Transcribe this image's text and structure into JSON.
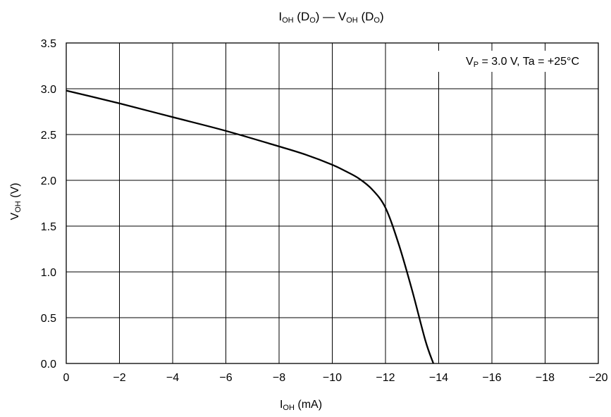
{
  "chart_data": {
    "type": "line",
    "title": {
      "main": "I",
      "sub": "OH",
      "pin_open": " (D",
      "pin_sub": "O",
      "middle": ") — V",
      "sub2": "OH",
      "pin2_open": " (D",
      "pin2_sub": "O",
      "close": ")"
    },
    "xlabel": {
      "main": "I",
      "sub": "OH",
      "unit": " (mA)"
    },
    "ylabel": {
      "main": "V",
      "sub": "OH",
      "unit": " (V)"
    },
    "annotation": {
      "v": "V",
      "sub": "P",
      "rest": " = 3.0 V, Ta = +25°C"
    },
    "xlim": [
      0,
      -20
    ],
    "ylim": [
      0,
      3.5
    ],
    "xticks": [
      0,
      -2,
      -4,
      -6,
      -8,
      -10,
      -12,
      -14,
      -16,
      -18,
      -20
    ],
    "xtick_labels": [
      "0",
      "−2",
      "−4",
      "−6",
      "−8",
      "−10",
      "−12",
      "−14",
      "−16",
      "−18",
      "−20"
    ],
    "yticks": [
      0,
      0.5,
      1.0,
      1.5,
      2.0,
      2.5,
      3.0,
      3.5
    ],
    "ytick_labels": [
      "0.0",
      "0.5",
      "1.0",
      "1.5",
      "2.0",
      "2.5",
      "3.0",
      "3.5"
    ],
    "grid": true,
    "legend": "none",
    "line_color": "#000000",
    "series": [
      {
        "x": [
          0,
          -2,
          -4,
          -6,
          -8,
          -9,
          -10,
          -10.5,
          -11,
          -11.5,
          -12,
          -12.5,
          -13,
          -13.5,
          -13.8
        ],
        "y": [
          2.98,
          2.84,
          2.69,
          2.54,
          2.37,
          2.28,
          2.17,
          2.1,
          2.02,
          1.9,
          1.7,
          1.3,
          0.8,
          0.25,
          0.0
        ]
      }
    ]
  }
}
